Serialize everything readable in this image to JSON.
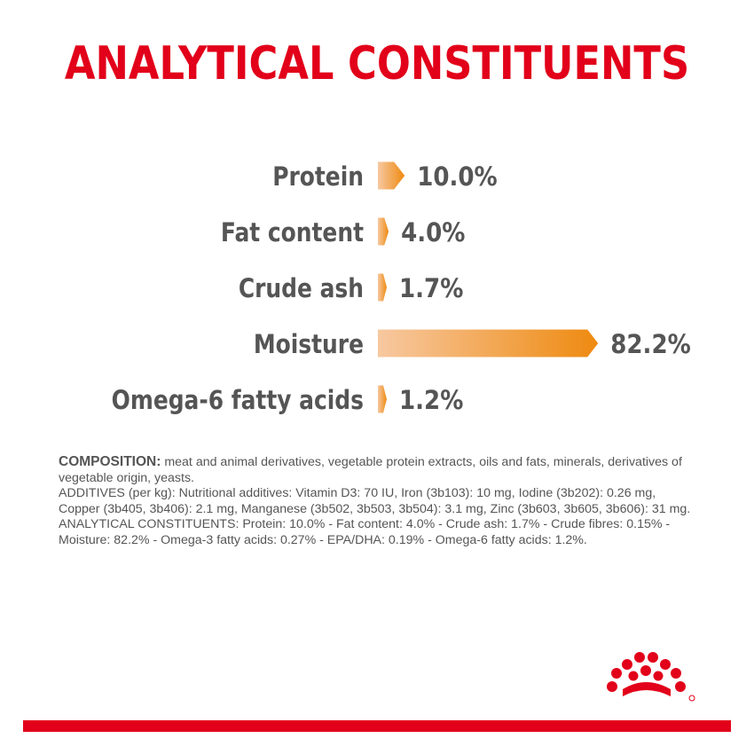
{
  "title": "ANALYTICAL CONSTITUENTS",
  "chart_data": {
    "type": "bar",
    "orientation": "horizontal",
    "categories": [
      "Protein",
      "Fat content",
      "Crude ash",
      "Moisture",
      "Omega-6 fatty acids"
    ],
    "values": [
      10.0,
      4.0,
      1.7,
      82.2,
      1.2
    ],
    "value_labels": [
      "10.0%",
      "4.0%",
      "1.7%",
      "82.2%",
      "1.2%"
    ],
    "unit": "%",
    "xlim": [
      0,
      100
    ],
    "grid": false,
    "colors": {
      "bar_start": "#f7c8a0",
      "bar_end": "#ee8a10",
      "label": "#555555",
      "value": "#555555"
    }
  },
  "composition": {
    "label": "COMPOSITION:",
    "text": " meat and animal derivatives, vegetable protein extracts, oils and fats, minerals, derivatives of vegetable origin, yeasts.",
    "additives": "ADDITIVES (per kg): Nutritional additives: Vitamin D3: 70 IU, Iron (3b103): 10 mg, Iodine (3b202): 0.26 mg, Copper (3b405, 3b406): 2.1 mg, Manganese (3b502, 3b503, 3b504): 3.1 mg, Zinc (3b603, 3b605, 3b606): 31 mg.",
    "analytical": "ANALYTICAL CONSTITUENTS: Protein: 10.0% - Fat content: 4.0% - Crude ash: 1.7% - Crude fibres: 0.15% - Moisture: 82.2% - Omega-3 fatty acids: 0.27% - EPA/DHA: 0.19% - Omega-6 fatty acids: 1.2%."
  },
  "brand": {
    "logo_icon": "royal-canin-crown-icon",
    "accent": "#e2001a"
  }
}
